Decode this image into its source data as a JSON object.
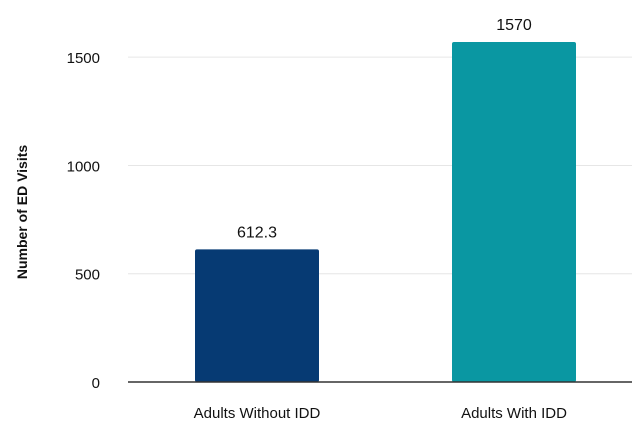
{
  "chart_data": {
    "type": "bar",
    "title": "",
    "xlabel": "",
    "ylabel": "Number of ED Visits",
    "categories": [
      "Adults Without IDD",
      "Adults With IDD"
    ],
    "values": [
      612.3,
      1570
    ],
    "data_labels": [
      "612.3",
      "1570"
    ],
    "ylim": [
      0,
      1570
    ],
    "yticks": [
      0,
      500,
      1000,
      1500
    ],
    "ytick_labels": [
      "0",
      "500",
      "1000",
      "1500"
    ],
    "grid": true,
    "legend": "none",
    "colors": [
      "#063a73",
      "#0a97a2"
    ]
  }
}
